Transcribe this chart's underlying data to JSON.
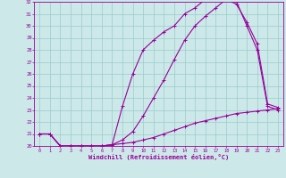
{
  "xlabel": "Windchill (Refroidissement éolien,°C)",
  "bg_color": "#cce8e8",
  "line_color": "#990099",
  "grid_color": "#99cccc",
  "xlim": [
    -0.5,
    23.5
  ],
  "ylim": [
    20,
    32
  ],
  "xticks": [
    0,
    1,
    2,
    3,
    4,
    5,
    6,
    7,
    8,
    9,
    10,
    11,
    12,
    13,
    14,
    15,
    16,
    17,
    18,
    19,
    20,
    21,
    22,
    23
  ],
  "yticks": [
    20,
    21,
    22,
    23,
    24,
    25,
    26,
    27,
    28,
    29,
    30,
    31,
    32
  ],
  "line1_x": [
    0,
    1,
    2,
    3,
    4,
    5,
    6,
    7,
    8,
    9,
    10,
    11,
    12,
    13,
    14,
    15,
    16,
    17,
    18,
    19,
    20,
    21,
    22,
    23
  ],
  "line1_y": [
    21.0,
    21.0,
    20.0,
    20.0,
    20.0,
    20.0,
    20.0,
    20.1,
    20.2,
    20.3,
    20.5,
    20.7,
    21.0,
    21.3,
    21.6,
    21.9,
    22.1,
    22.3,
    22.5,
    22.7,
    22.8,
    22.9,
    23.0,
    23.1
  ],
  "line2_x": [
    0,
    1,
    2,
    3,
    4,
    5,
    6,
    7,
    8,
    9,
    10,
    11,
    12,
    13,
    14,
    15,
    16,
    17,
    18,
    19,
    20,
    21,
    22,
    23
  ],
  "line2_y": [
    21.0,
    21.0,
    20.0,
    20.0,
    20.0,
    20.0,
    20.0,
    20.1,
    20.5,
    21.2,
    22.5,
    24.0,
    25.5,
    27.2,
    28.8,
    30.0,
    30.8,
    31.5,
    32.2,
    31.8,
    30.3,
    28.5,
    23.5,
    23.2
  ],
  "line3_x": [
    0,
    1,
    2,
    3,
    4,
    5,
    6,
    7,
    8,
    9,
    10,
    11,
    12,
    13,
    14,
    15,
    16,
    17,
    18,
    19,
    20,
    21,
    22,
    23
  ],
  "line3_y": [
    21.0,
    21.0,
    20.0,
    20.0,
    20.0,
    20.0,
    20.0,
    20.1,
    23.3,
    26.0,
    28.0,
    28.8,
    29.5,
    30.0,
    31.0,
    31.5,
    32.2,
    32.3,
    32.2,
    32.0,
    30.0,
    28.0,
    23.3,
    23.0
  ]
}
